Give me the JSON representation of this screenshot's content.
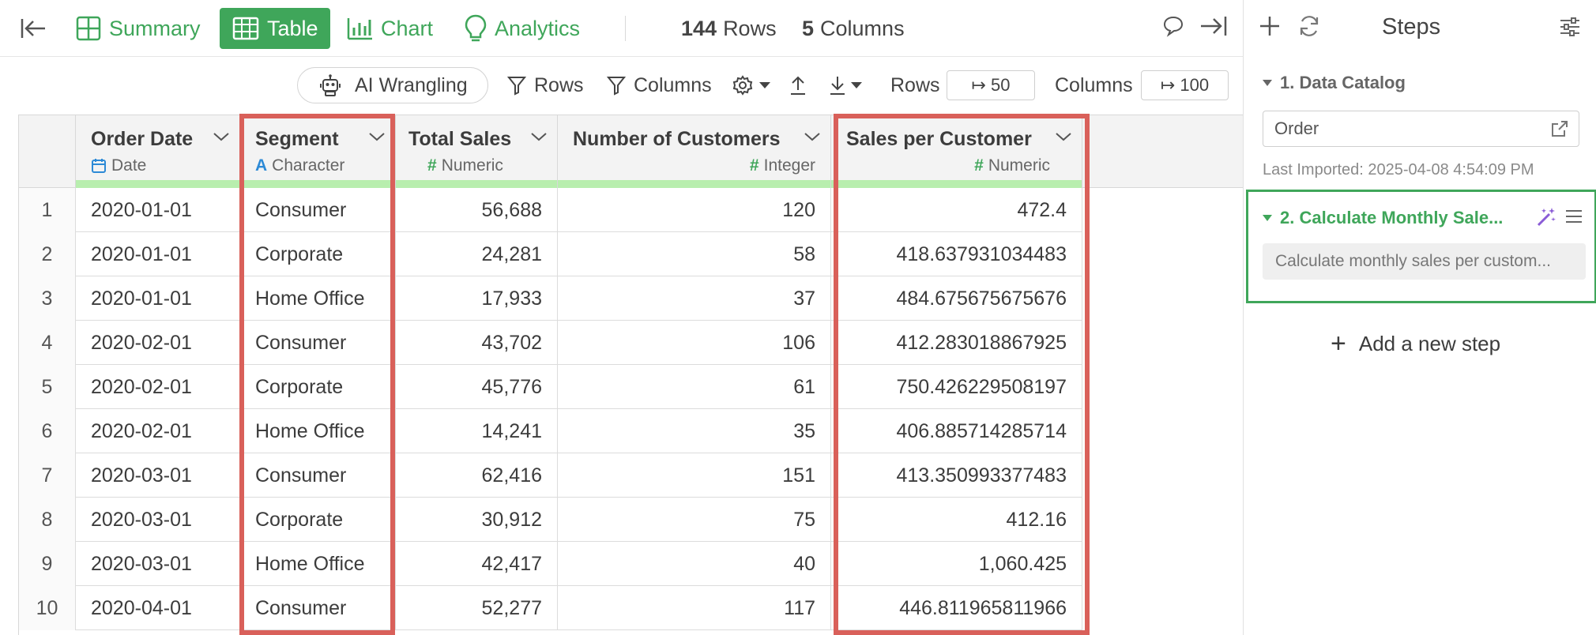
{
  "topbar": {
    "tabs": [
      {
        "label": "Summary"
      },
      {
        "label": "Table"
      },
      {
        "label": "Chart"
      },
      {
        "label": "Analytics"
      }
    ],
    "rows_count": "144",
    "rows_label": "Rows",
    "cols_count": "5",
    "cols_label": "Columns"
  },
  "toolbar": {
    "ai_label": "AI Wrangling",
    "rows_filter_label": "Rows",
    "columns_filter_label": "Columns",
    "rows_limit_label": "Rows",
    "rows_limit_value": "↦ 50",
    "cols_limit_label": "Columns",
    "cols_limit_value": "↦ 100"
  },
  "columns": [
    {
      "name": "Order Date",
      "type": "Date",
      "type_icon": "calendar-icon"
    },
    {
      "name": "Segment",
      "type": "Character",
      "type_icon": "A"
    },
    {
      "name": "Total Sales",
      "type": "Numeric",
      "type_icon": "#"
    },
    {
      "name": "Number of Customers",
      "type": "Integer",
      "type_icon": "#"
    },
    {
      "name": "Sales per Customer",
      "type": "Numeric",
      "type_icon": "#"
    }
  ],
  "rows": [
    [
      "1",
      "2020-01-01",
      "Consumer",
      "56,688",
      "120",
      "472.4"
    ],
    [
      "2",
      "2020-01-01",
      "Corporate",
      "24,281",
      "58",
      "418.637931034483"
    ],
    [
      "3",
      "2020-01-01",
      "Home Office",
      "17,933",
      "37",
      "484.675675675676"
    ],
    [
      "4",
      "2020-02-01",
      "Consumer",
      "43,702",
      "106",
      "412.283018867925"
    ],
    [
      "5",
      "2020-02-01",
      "Corporate",
      "45,776",
      "61",
      "750.426229508197"
    ],
    [
      "6",
      "2020-02-01",
      "Home Office",
      "14,241",
      "35",
      "406.885714285714"
    ],
    [
      "7",
      "2020-03-01",
      "Consumer",
      "62,416",
      "151",
      "413.350993377483"
    ],
    [
      "8",
      "2020-03-01",
      "Corporate",
      "30,912",
      "75",
      "412.16"
    ],
    [
      "9",
      "2020-03-01",
      "Home Office",
      "42,417",
      "40",
      "1,060.425"
    ],
    [
      "10",
      "2020-04-01",
      "Consumer",
      "52,277",
      "117",
      "446.811965811966"
    ]
  ],
  "steps_panel": {
    "title": "Steps",
    "step1": {
      "label": "1. Data Catalog",
      "input_value": "Order",
      "last_imported": "Last Imported: 2025-04-08 4:54:09 PM"
    },
    "step2": {
      "label": "2. Calculate Monthly Sale...",
      "description": "Calculate monthly sales per custom..."
    },
    "add_step_label": "Add a new step"
  },
  "colors": {
    "accent_green": "#3fa65a",
    "highlight_red": "#d9605a",
    "type_bar": "#b8eeae",
    "wand_purple": "#8a5cd6"
  }
}
